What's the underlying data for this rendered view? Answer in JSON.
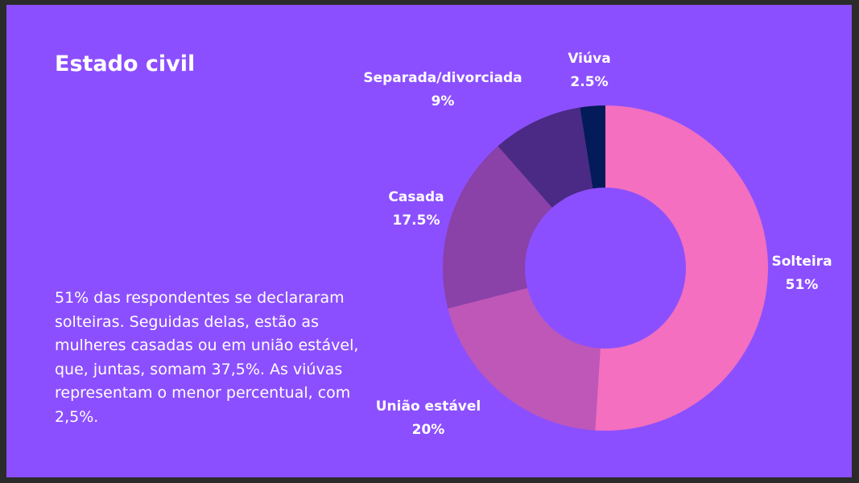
{
  "slide": {
    "title": "Estado civil",
    "description": "51% das respondentes se declararam solteiras. Seguidas delas, estão as mulheres casadas ou em união estável, que, juntas, somam 37,5%. As viúvas representam o menor percentual, com 2,5%."
  },
  "colors": {
    "background": "#8c4fff",
    "page": "#2b2b2b"
  },
  "chart_data": {
    "type": "pie",
    "donut": true,
    "title": "Estado civil",
    "slices": [
      {
        "name": "Solteira",
        "value": 51,
        "label": "51%",
        "color": "#f46fbf"
      },
      {
        "name": "União estável",
        "value": 20,
        "label": "20%",
        "color": "#bf57b8"
      },
      {
        "name": "Casada",
        "value": 17.5,
        "label": "17.5%",
        "color": "#8a41a8"
      },
      {
        "name": "Separada/divorciada",
        "value": 9,
        "label": "9%",
        "color": "#4a2a84"
      },
      {
        "name": "Viúva",
        "value": 2.5,
        "label": "2.5%",
        "color": "#031b59"
      }
    ],
    "legend": "none"
  }
}
